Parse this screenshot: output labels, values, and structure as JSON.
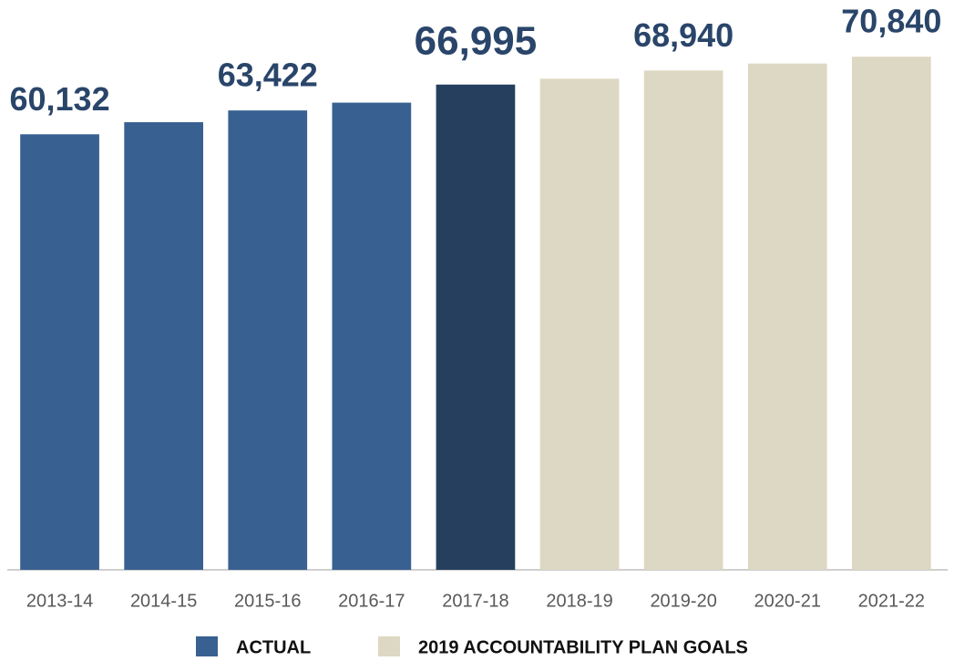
{
  "chart_data": {
    "type": "bar",
    "categories": [
      "2013-14",
      "2014-15",
      "2015-16",
      "2016-17",
      "2017-18",
      "2018-19",
      "2019-20",
      "2020-21",
      "2021-22"
    ],
    "series": [
      {
        "name": "ACTUAL",
        "color": "#386192",
        "values": [
          60132,
          61800,
          63422,
          64500,
          66995,
          null,
          null,
          null,
          null
        ],
        "value_labels": [
          "60,132",
          null,
          "63,422",
          null,
          "66,995",
          null,
          null,
          null,
          null
        ]
      },
      {
        "name": "2019 ACCOUNTABILITY PLAN GOALS",
        "color": "#ddd8c3",
        "values": [
          null,
          null,
          null,
          null,
          null,
          67800,
          68940,
          69900,
          70840
        ],
        "value_labels": [
          null,
          null,
          null,
          null,
          null,
          null,
          "68,940",
          null,
          "70,840"
        ]
      }
    ],
    "highlight_category": "2017-18",
    "highlight_color": "#263f5e",
    "ylim": [
      0,
      72000
    ]
  }
}
